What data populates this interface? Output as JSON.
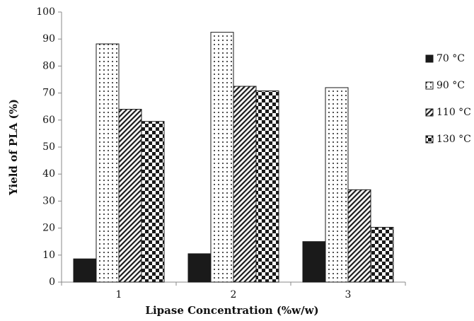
{
  "chart_data": {
    "type": "bar",
    "x_label": "Lipase Concentration (%w/w)",
    "y_label": "Yield of PLA (%)",
    "categories": [
      "1",
      "2",
      "3"
    ],
    "series": [
      {
        "name": "70 °C",
        "color": "#1a1a1a",
        "values": [
          8.6,
          10.5,
          15
        ]
      },
      {
        "name": "90 °C",
        "color": "#1a1a1a",
        "values": [
          88.2,
          92.5,
          72
        ]
      },
      {
        "name": "110 °C",
        "color": "#1a1a1a",
        "values": [
          64,
          72.5,
          34.2
        ]
      },
      {
        "name": "130 °C",
        "color": "#1a1a1a",
        "values": [
          59.5,
          70.8,
          20.3
        ]
      }
    ],
    "ylim": [
      0,
      100
    ],
    "yticks": [
      0,
      10,
      20,
      30,
      40,
      50,
      60,
      70,
      80,
      90,
      100
    ],
    "grid": false
  }
}
